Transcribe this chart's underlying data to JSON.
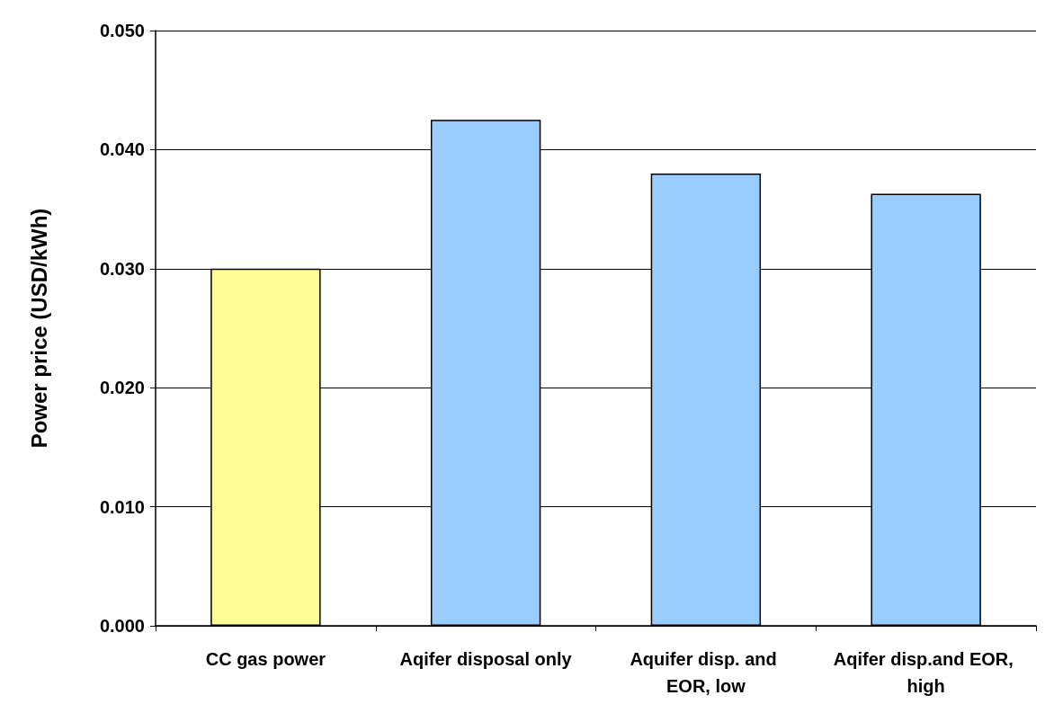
{
  "chart_data": {
    "type": "bar",
    "ylabel": "Power price (USD/kWh)",
    "categories": [
      "CC gas power",
      "Aqifer disposal only",
      "Aquifer disp. and EOR, low",
      "Aqifer disp.and EOR, high"
    ],
    "values": [
      0.03,
      0.0425,
      0.038,
      0.0363
    ],
    "colors": [
      "#ffff99",
      "#99ccff",
      "#99ccff",
      "#99ccff"
    ],
    "ylim": [
      0,
      0.05
    ],
    "yticks": [
      {
        "value": 0,
        "label": "0.000"
      },
      {
        "value": 0.01,
        "label": "0.010"
      },
      {
        "value": 0.02,
        "label": "0.020"
      },
      {
        "value": 0.03,
        "label": "0.030"
      },
      {
        "value": 0.04,
        "label": "0.040"
      },
      {
        "value": 0.05,
        "label": "0.050"
      }
    ],
    "grid": "y"
  }
}
